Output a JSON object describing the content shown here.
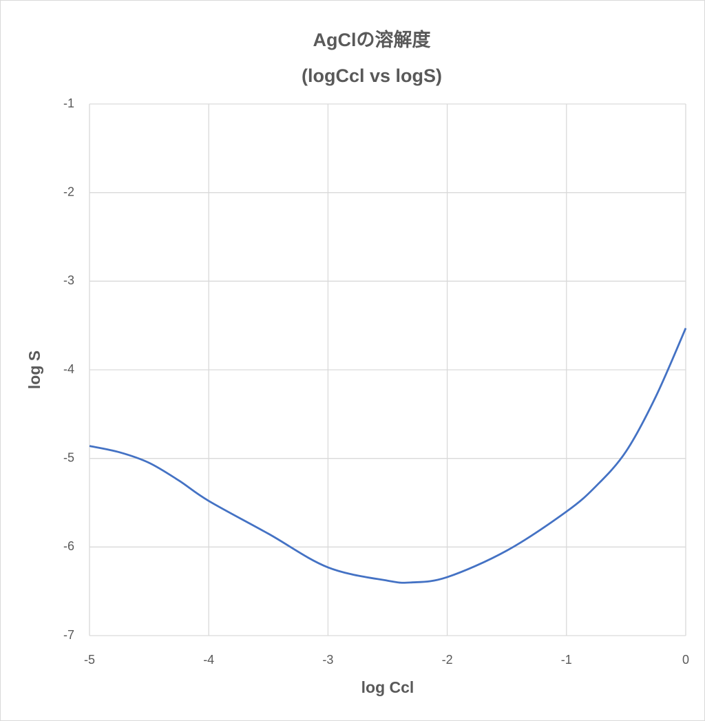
{
  "chart_data": {
    "type": "line",
    "title": "AgClの溶解度",
    "subtitle": "(logCcl vs logS)",
    "x_label": "log Ccl",
    "y_label": "log S",
    "x": [
      -5,
      -4.75,
      -4.5,
      -4.25,
      -4,
      -3.5,
      -3,
      -2.5,
      -2.3,
      -2,
      -1.5,
      -1,
      -0.75,
      -0.5,
      -0.25,
      0
    ],
    "series": [
      {
        "name": "log S",
        "color": "#4472c4",
        "values": [
          -4.86,
          -4.93,
          -5.05,
          -5.25,
          -5.48,
          -5.85,
          -6.23,
          -6.38,
          -6.4,
          -6.34,
          -6.04,
          -5.6,
          -5.31,
          -4.92,
          -4.3,
          -3.53
        ]
      }
    ],
    "xlim": [
      -5,
      0
    ],
    "xticks": [
      -5,
      -4,
      -3,
      -2,
      -1,
      0
    ],
    "ylim": [
      -7,
      -1
    ],
    "yticks": [
      -1,
      -2,
      -3,
      -4,
      -5,
      -6,
      -7
    ],
    "grid": true
  }
}
